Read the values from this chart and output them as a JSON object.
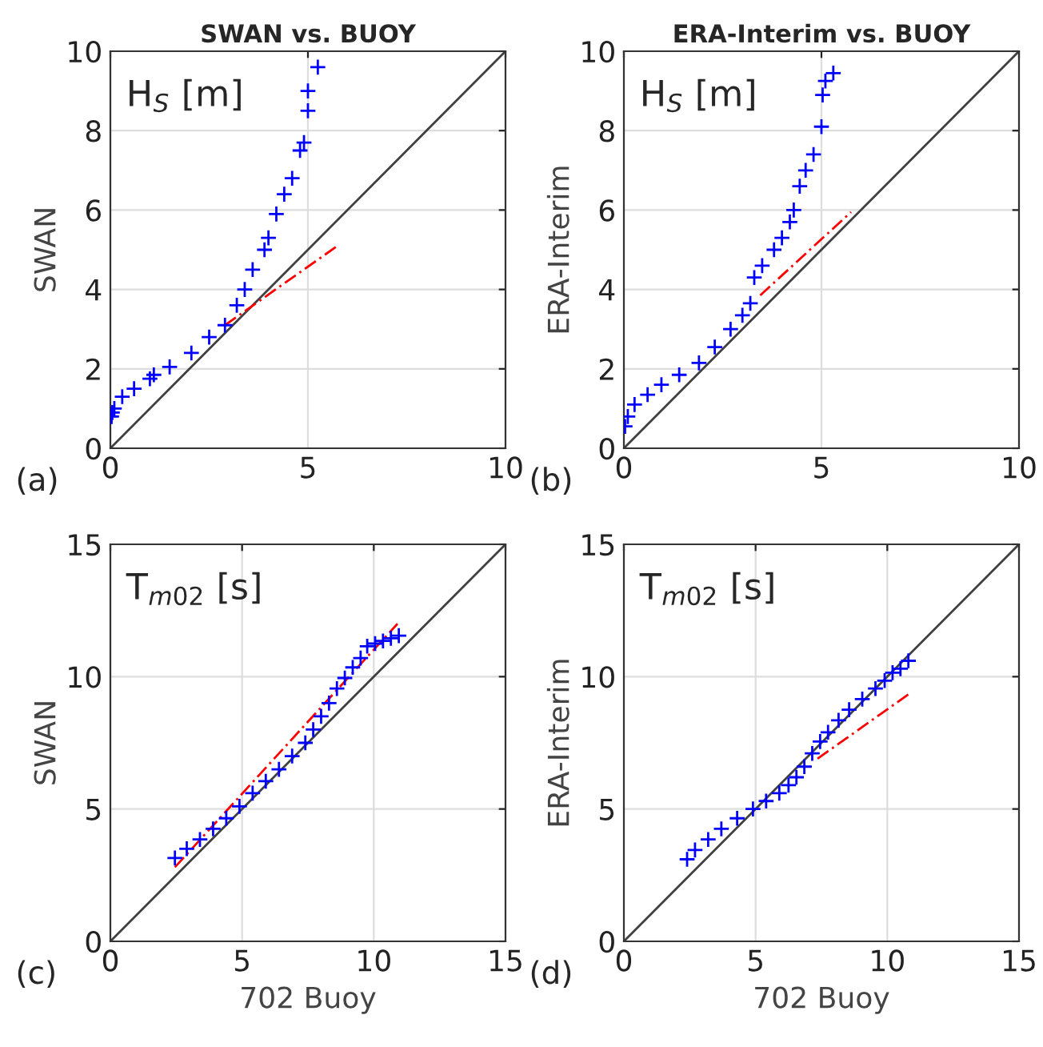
{
  "chart_data": [
    {
      "type": "scatter",
      "title": "SWAN vs. BUOY",
      "ylabel": "SWAN",
      "annotations": [
        "H$_{S}$ [m]",
        "(a)"
      ],
      "xlim": [
        0,
        10
      ],
      "ylim": [
        0,
        10
      ],
      "xticks": [
        0,
        5,
        10
      ],
      "yticks": [
        0,
        2,
        4,
        6,
        8,
        10
      ],
      "grid": true,
      "series": [
        {
          "type": "scatter",
          "marker": "cross",
          "color": "#0000ff",
          "x": [
            0.03,
            0.05,
            0.1,
            0.3,
            0.6,
            1.0,
            1.1,
            1.5,
            2.05,
            2.5,
            2.9,
            3.2,
            3.4,
            3.6,
            3.9,
            4.0,
            4.2,
            4.4,
            4.6,
            4.8,
            4.9,
            5.0,
            5.0,
            5.25
          ],
          "values": [
            0.8,
            0.9,
            1.0,
            1.3,
            1.5,
            1.75,
            1.85,
            2.05,
            2.4,
            2.8,
            3.1,
            3.6,
            4.0,
            4.5,
            5.0,
            5.3,
            5.9,
            6.4,
            6.8,
            7.5,
            7.7,
            8.5,
            9.0,
            9.6
          ]
        },
        {
          "type": "line",
          "color": "#404040",
          "line_style": "solid",
          "x": [
            0,
            10
          ],
          "values": [
            0,
            10
          ]
        },
        {
          "type": "line",
          "color": "#ff0000",
          "line_style": "dashed",
          "x": [
            2.9,
            5.75
          ],
          "values": [
            3.1,
            5.1
          ]
        }
      ]
    },
    {
      "type": "scatter",
      "title": "ERA-Interim vs. BUOY",
      "ylabel": "ERA-Interim",
      "annotations": [
        "H$_{S}$ [m]",
        "(b)"
      ],
      "xlim": [
        0,
        10
      ],
      "ylim": [
        0,
        10
      ],
      "xticks": [
        0,
        5,
        10
      ],
      "yticks": [
        0,
        2,
        4,
        6,
        8,
        10
      ],
      "grid": true,
      "series": [
        {
          "type": "scatter",
          "marker": "cross",
          "color": "#0000ff",
          "x": [
            0.03,
            0.1,
            0.27,
            0.6,
            0.95,
            1.4,
            1.9,
            2.3,
            2.7,
            3.0,
            3.2,
            3.3,
            3.5,
            3.8,
            4.0,
            4.2,
            4.3,
            4.45,
            4.6,
            4.8,
            5.0,
            5.03,
            5.1,
            5.3
          ],
          "values": [
            0.55,
            0.8,
            1.1,
            1.35,
            1.6,
            1.85,
            2.15,
            2.55,
            3.0,
            3.35,
            3.65,
            4.3,
            4.6,
            5.0,
            5.3,
            5.7,
            6.0,
            6.6,
            7.0,
            7.4,
            8.1,
            8.9,
            9.25,
            9.45
          ]
        },
        {
          "type": "line",
          "color": "#404040",
          "line_style": "solid",
          "x": [
            0,
            10
          ],
          "values": [
            0,
            10
          ]
        },
        {
          "type": "line",
          "color": "#ff0000",
          "line_style": "dashed",
          "x": [
            3.45,
            5.75
          ],
          "values": [
            3.85,
            5.95
          ]
        }
      ]
    },
    {
      "type": "scatter",
      "ylabel": "SWAN",
      "xlabel": "702 Buoy",
      "annotations": [
        "T$_{m02}$ [s]",
        "(c)"
      ],
      "xlim": [
        0,
        15
      ],
      "ylim": [
        0,
        15
      ],
      "xticks": [
        0,
        5,
        10,
        15
      ],
      "yticks": [
        0,
        5,
        10,
        15
      ],
      "grid": true,
      "series": [
        {
          "type": "scatter",
          "marker": "cross",
          "color": "#0000ff",
          "x": [
            2.45,
            2.9,
            3.4,
            3.9,
            4.4,
            4.9,
            5.4,
            5.9,
            6.4,
            6.9,
            7.4,
            7.7,
            8.0,
            8.3,
            8.6,
            8.9,
            9.2,
            9.5,
            9.75,
            10.05,
            10.35,
            10.65,
            10.95
          ],
          "values": [
            3.15,
            3.5,
            3.85,
            4.25,
            4.65,
            5.1,
            5.6,
            6.05,
            6.5,
            7.0,
            7.5,
            8.0,
            8.5,
            9.0,
            9.55,
            9.95,
            10.35,
            10.7,
            11.15,
            11.25,
            11.35,
            11.45,
            11.55
          ]
        },
        {
          "type": "line",
          "color": "#404040",
          "line_style": "solid",
          "x": [
            0,
            15
          ],
          "values": [
            0,
            15
          ]
        },
        {
          "type": "line",
          "color": "#ff0000",
          "line_style": "dashed",
          "x": [
            2.45,
            10.9
          ],
          "values": [
            2.8,
            12.0
          ]
        }
      ]
    },
    {
      "type": "scatter",
      "ylabel": "ERA-Interim",
      "xlabel": "702 Buoy",
      "annotations": [
        "T$_{m02}$ [s]",
        "(d)"
      ],
      "xlim": [
        0,
        15
      ],
      "ylim": [
        0,
        15
      ],
      "xticks": [
        0,
        5,
        10,
        15
      ],
      "yticks": [
        0,
        5,
        10,
        15
      ],
      "grid": true,
      "series": [
        {
          "type": "scatter",
          "marker": "cross",
          "color": "#0000ff",
          "x": [
            2.4,
            2.7,
            3.2,
            3.7,
            4.3,
            4.9,
            5.4,
            5.9,
            6.25,
            6.55,
            6.85,
            7.15,
            7.45,
            7.75,
            8.15,
            8.55,
            9.05,
            9.55,
            9.9,
            10.2,
            10.5,
            10.8
          ],
          "values": [
            3.1,
            3.45,
            3.85,
            4.25,
            4.65,
            5.0,
            5.3,
            5.6,
            5.9,
            6.2,
            6.6,
            7.1,
            7.55,
            7.9,
            8.35,
            8.75,
            9.15,
            9.55,
            9.85,
            10.15,
            10.3,
            10.6
          ]
        },
        {
          "type": "line",
          "color": "#404040",
          "line_style": "solid",
          "x": [
            0,
            15
          ],
          "values": [
            0,
            15
          ]
        },
        {
          "type": "line",
          "color": "#ff0000",
          "line_style": "dashed",
          "x": [
            7.35,
            10.9
          ],
          "values": [
            6.9,
            9.4
          ]
        }
      ]
    }
  ]
}
